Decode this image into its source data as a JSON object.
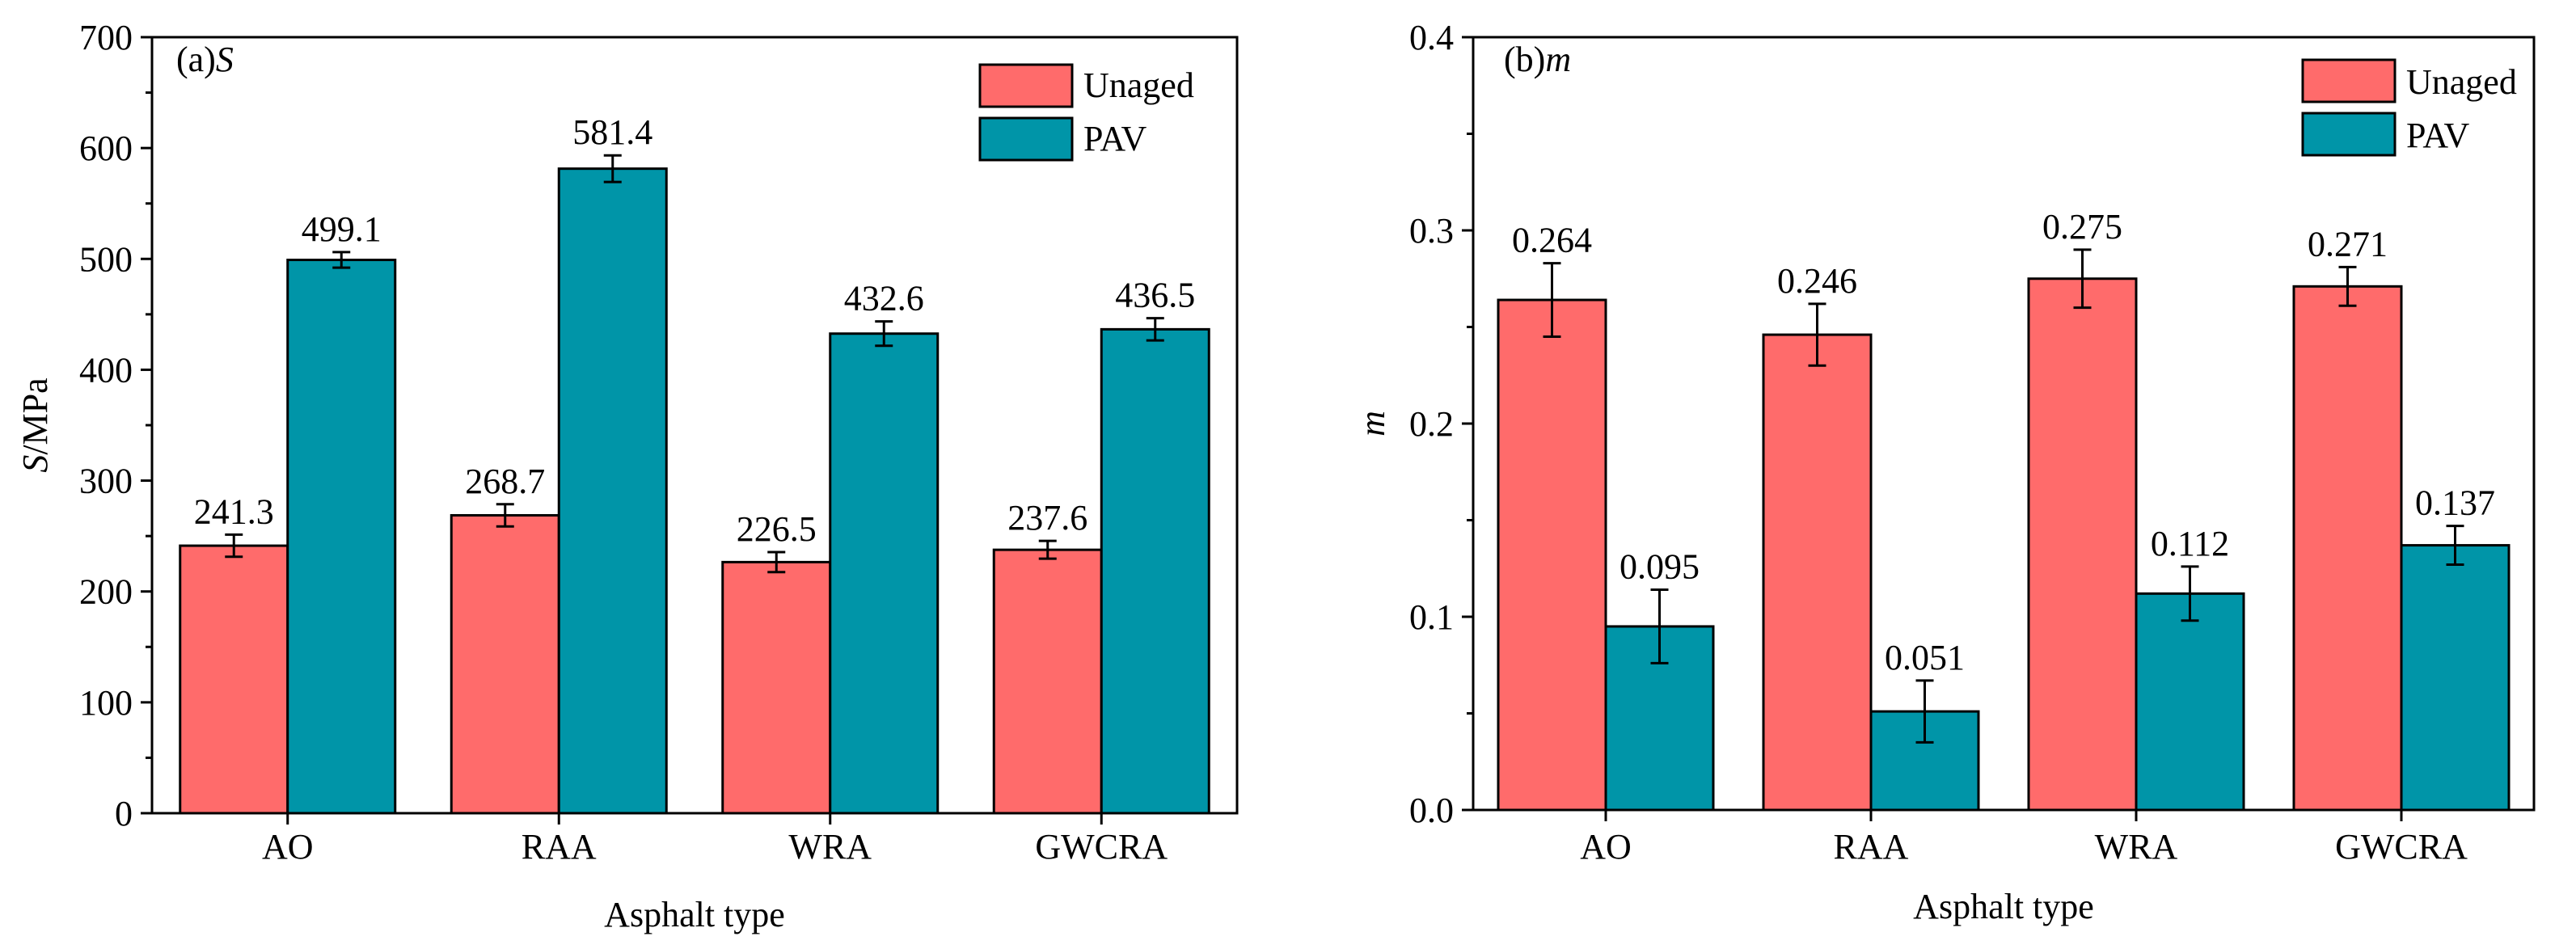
{
  "chart_data": [
    {
      "type": "bar",
      "panel_label": "(a)",
      "panel_symbol": "S",
      "categories": [
        "AO",
        "RAA",
        "WRA",
        "GWCRA"
      ],
      "xlabel": "Asphalt type",
      "ylabel_italic": "S",
      "ylabel_rest": "/MPa",
      "ylim": [
        0,
        700
      ],
      "yticks": [
        "0",
        "100",
        "200",
        "300",
        "400",
        "500",
        "600",
        "700"
      ],
      "ytick_values": [
        0,
        100,
        200,
        300,
        400,
        500,
        600,
        700
      ],
      "legend_position": "top-right",
      "series": [
        {
          "name": "Unaged",
          "color": "#ff6b6b",
          "values": [
            241.3,
            268.7,
            226.5,
            237.6
          ],
          "labels": [
            "241.3",
            "268.7",
            "226.5",
            "237.6"
          ],
          "errors": [
            10,
            10,
            9,
            8
          ]
        },
        {
          "name": "PAV",
          "color": "#0095a8",
          "values": [
            499.1,
            581.4,
            432.6,
            436.5
          ],
          "labels": [
            "499.1",
            "581.4",
            "432.6",
            "436.5"
          ],
          "errors": [
            7,
            12,
            11,
            10
          ]
        }
      ]
    },
    {
      "type": "bar",
      "panel_label": "(b)",
      "panel_symbol": "m",
      "categories": [
        "AO",
        "RAA",
        "WRA",
        "GWCRA"
      ],
      "xlabel": "Asphalt type",
      "ylabel_italic": "m",
      "ylabel_rest": "",
      "ylim": [
        0,
        0.4
      ],
      "yticks": [
        "0.0",
        "0.1",
        "0.2",
        "0.3",
        "0.4"
      ],
      "ytick_values": [
        0,
        0.1,
        0.2,
        0.3,
        0.4
      ],
      "legend_position": "top-right",
      "series": [
        {
          "name": "Unaged",
          "color": "#ff6b6b",
          "values": [
            0.264,
            0.246,
            0.275,
            0.271
          ],
          "labels": [
            "0.264",
            "0.246",
            "0.275",
            "0.271"
          ],
          "errors": [
            0.019,
            0.016,
            0.015,
            0.01
          ]
        },
        {
          "name": "PAV",
          "color": "#0095a8",
          "values": [
            0.095,
            0.051,
            0.112,
            0.137
          ],
          "labels": [
            "0.095",
            "0.051",
            "0.112",
            "0.137"
          ],
          "errors": [
            0.019,
            0.016,
            0.014,
            0.01
          ]
        }
      ]
    }
  ]
}
